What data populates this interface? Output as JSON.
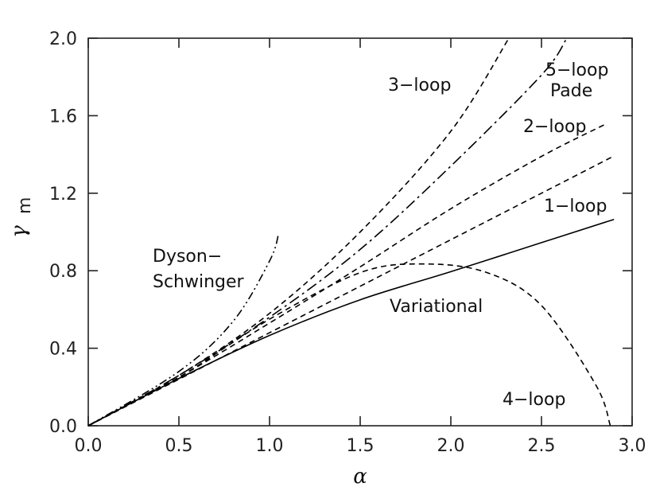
{
  "chart_data": {
    "type": "line",
    "xlabel": "α",
    "ylabel": "γ",
    "ylabel_sub": "m",
    "xlim": [
      0.0,
      3.0
    ],
    "ylim": [
      0.0,
      2.0
    ],
    "x_ticks": [
      "0.0",
      "0.5",
      "1.0",
      "1.5",
      "2.0",
      "2.5",
      "3.0"
    ],
    "y_ticks": [
      "0.0",
      "0.4",
      "0.8",
      "1.2",
      "1.6",
      "2.0"
    ],
    "grid": false,
    "series": [
      {
        "name": "Variational",
        "style": "solid",
        "x": [
          0.0,
          0.5,
          1.0,
          1.5,
          2.0,
          2.5,
          2.9
        ],
        "y": [
          0.0,
          0.244,
          0.466,
          0.65,
          0.795,
          0.945,
          1.065
        ]
      },
      {
        "name": "1-loop",
        "style": "dashed",
        "x": [
          0.0,
          0.5,
          1.0,
          1.5,
          2.0,
          2.5,
          2.9
        ],
        "y": [
          0.0,
          0.24,
          0.48,
          0.72,
          0.96,
          1.2,
          1.392
        ]
      },
      {
        "name": "2-loop",
        "style": "dashed",
        "x": [
          0.0,
          0.5,
          1.0,
          1.5,
          2.0,
          2.5,
          2.85
        ],
        "y": [
          0.0,
          0.25,
          0.53,
          0.82,
          1.12,
          1.39,
          1.555
        ]
      },
      {
        "name": "3-loop",
        "style": "dashed",
        "x": [
          0.0,
          0.5,
          1.0,
          1.5,
          2.0,
          2.32
        ],
        "y": [
          0.0,
          0.26,
          0.58,
          1.0,
          1.52,
          2.0
        ]
      },
      {
        "name": "4-loop",
        "style": "dashed",
        "x": [
          0.0,
          0.5,
          1.0,
          1.5,
          1.85,
          2.2,
          2.5,
          2.8,
          2.88
        ],
        "y": [
          0.0,
          0.25,
          0.55,
          0.79,
          0.835,
          0.79,
          0.62,
          0.21,
          0.0
        ]
      },
      {
        "name": "5-loop Pade",
        "style": "dash-dot",
        "x": [
          0.0,
          0.5,
          1.0,
          1.5,
          2.0,
          2.5,
          2.64
        ],
        "y": [
          0.0,
          0.26,
          0.56,
          0.91,
          1.34,
          1.81,
          2.0
        ]
      },
      {
        "name": "Dyson-Schwinger",
        "style": "dash-dot-dot",
        "x": [
          0.0,
          0.5,
          0.8,
          1.0,
          1.05
        ],
        "y": [
          0.0,
          0.28,
          0.54,
          0.85,
          0.99
        ]
      }
    ],
    "curve_labels": [
      {
        "text": "3−loop",
        "series": "3-loop"
      },
      {
        "text": "5−loop",
        "series": "5-loop Pade"
      },
      {
        "text": "Pade",
        "series": "5-loop Pade"
      },
      {
        "text": "2−loop",
        "series": "2-loop"
      },
      {
        "text": "1−loop",
        "series": "1-loop"
      },
      {
        "text": "Dyson−",
        "series": "Dyson-Schwinger"
      },
      {
        "text": "Schwinger",
        "series": "Dyson-Schwinger"
      },
      {
        "text": "Variational",
        "series": "Variational"
      },
      {
        "text": "4−loop",
        "series": "4-loop"
      }
    ]
  }
}
